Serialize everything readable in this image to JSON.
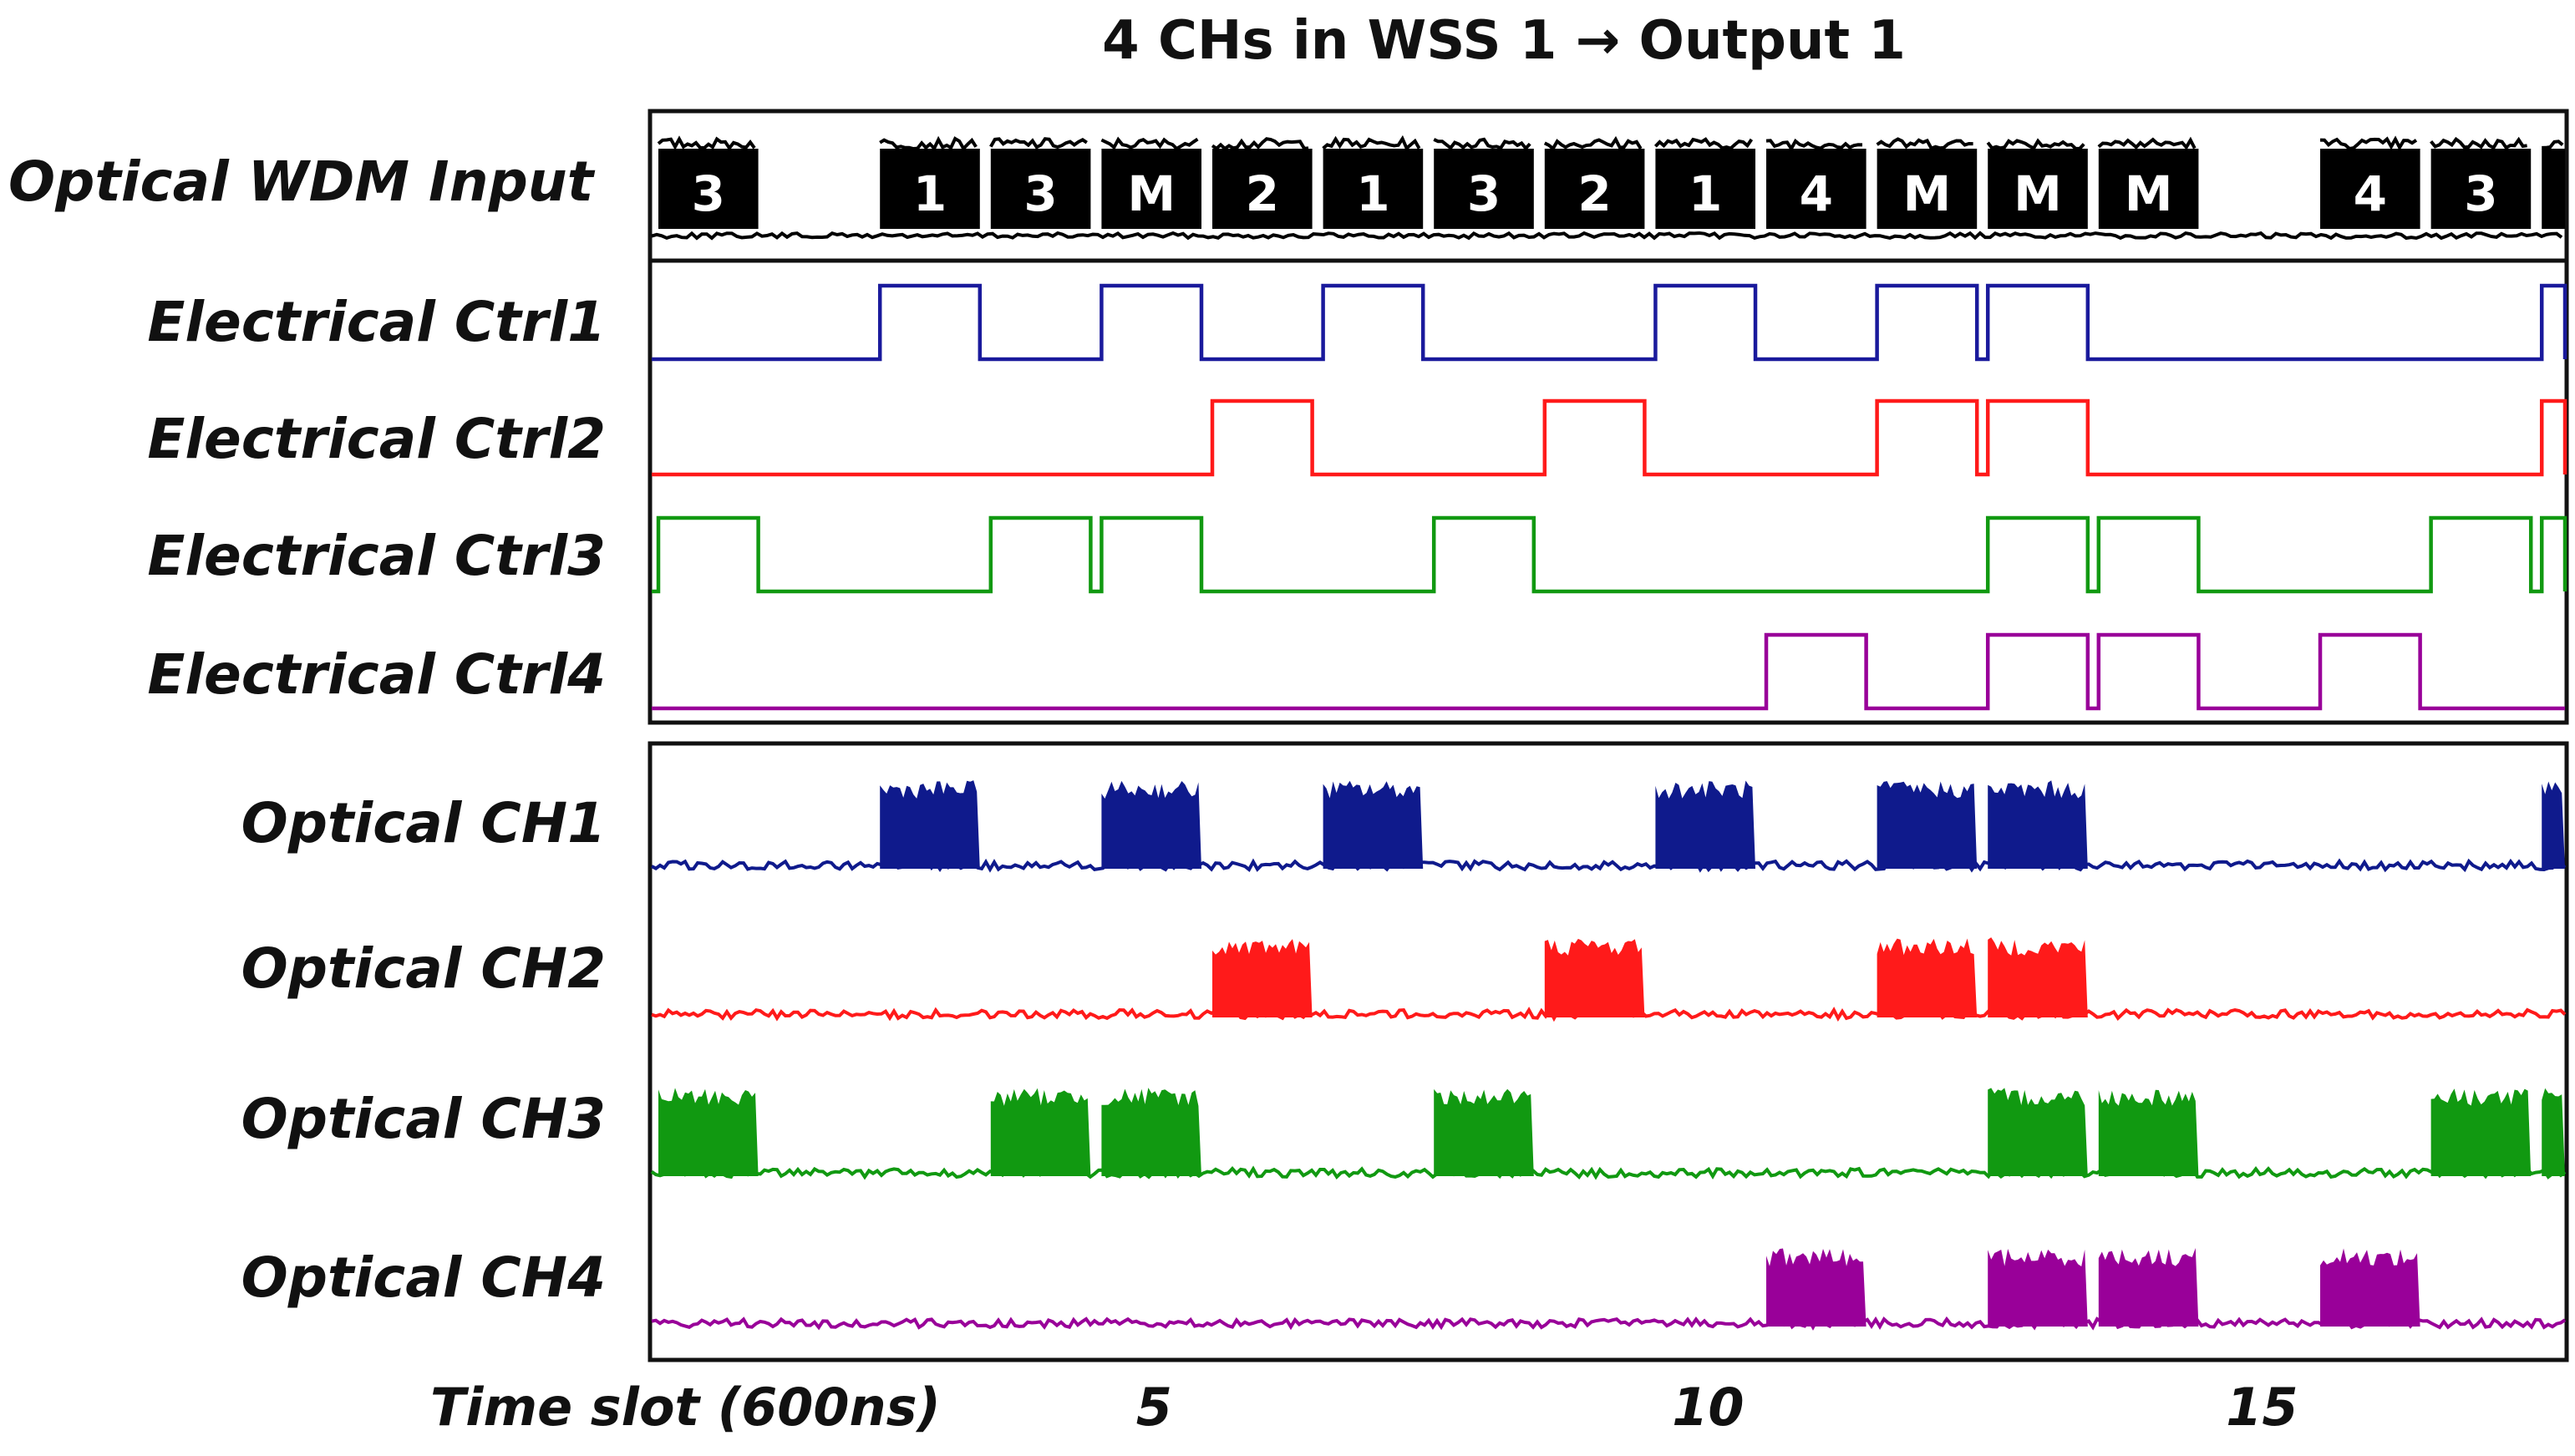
{
  "chart_data": {
    "type": "line",
    "title": "4 CHs in WSS 1 → Output 1",
    "xlabel": "Time slot (600ns)",
    "xlim": [
      0,
      17.3
    ],
    "x_ticks": [
      5,
      10,
      15
    ],
    "input": {
      "label": "Optical WDM Input",
      "color": "#000000",
      "packets": [
        {
          "slot": 0,
          "label": "3"
        },
        {
          "slot": 2,
          "label": "1"
        },
        {
          "slot": 3,
          "label": "3"
        },
        {
          "slot": 4,
          "label": "M"
        },
        {
          "slot": 5,
          "label": "2"
        },
        {
          "slot": 6,
          "label": "1"
        },
        {
          "slot": 7,
          "label": "3"
        },
        {
          "slot": 8,
          "label": "2"
        },
        {
          "slot": 9,
          "label": "1"
        },
        {
          "slot": 10,
          "label": "4"
        },
        {
          "slot": 11,
          "label": "M"
        },
        {
          "slot": 12,
          "label": "M"
        },
        {
          "slot": 13,
          "label": "M"
        },
        {
          "slot": 15,
          "label": "4"
        },
        {
          "slot": 16,
          "label": "3"
        },
        {
          "slot": 17,
          "label": ""
        }
      ]
    },
    "series": [
      {
        "name": "Electrical Ctrl1",
        "kind": "control",
        "color": "#1a1a9c",
        "active_slots": [
          2,
          4,
          6,
          9,
          11,
          12,
          17
        ]
      },
      {
        "name": "Electrical Ctrl2",
        "kind": "control",
        "color": "#ff1a1a",
        "active_slots": [
          5,
          8,
          11,
          12,
          17
        ]
      },
      {
        "name": "Electrical Ctrl3",
        "kind": "control",
        "color": "#119911",
        "active_slots": [
          0,
          3,
          4,
          7,
          12,
          13,
          16,
          17
        ]
      },
      {
        "name": "Electrical Ctrl4",
        "kind": "control",
        "color": "#990099",
        "active_slots": [
          10,
          12,
          13,
          15
        ]
      },
      {
        "name": "Optical CH1",
        "kind": "optical",
        "color": "#0f1a8c",
        "active_slots": [
          2,
          4,
          6,
          9,
          11,
          12,
          17
        ]
      },
      {
        "name": "Optical CH2",
        "kind": "optical",
        "color": "#ff1a1a",
        "active_slots": [
          5,
          8,
          11,
          12
        ]
      },
      {
        "name": "Optical CH3",
        "kind": "optical",
        "color": "#119911",
        "active_slots": [
          0,
          3,
          4,
          7,
          12,
          13,
          16,
          17
        ]
      },
      {
        "name": "Optical CH4",
        "kind": "optical",
        "color": "#990099",
        "active_slots": [
          10,
          12,
          13,
          15
        ]
      }
    ]
  }
}
